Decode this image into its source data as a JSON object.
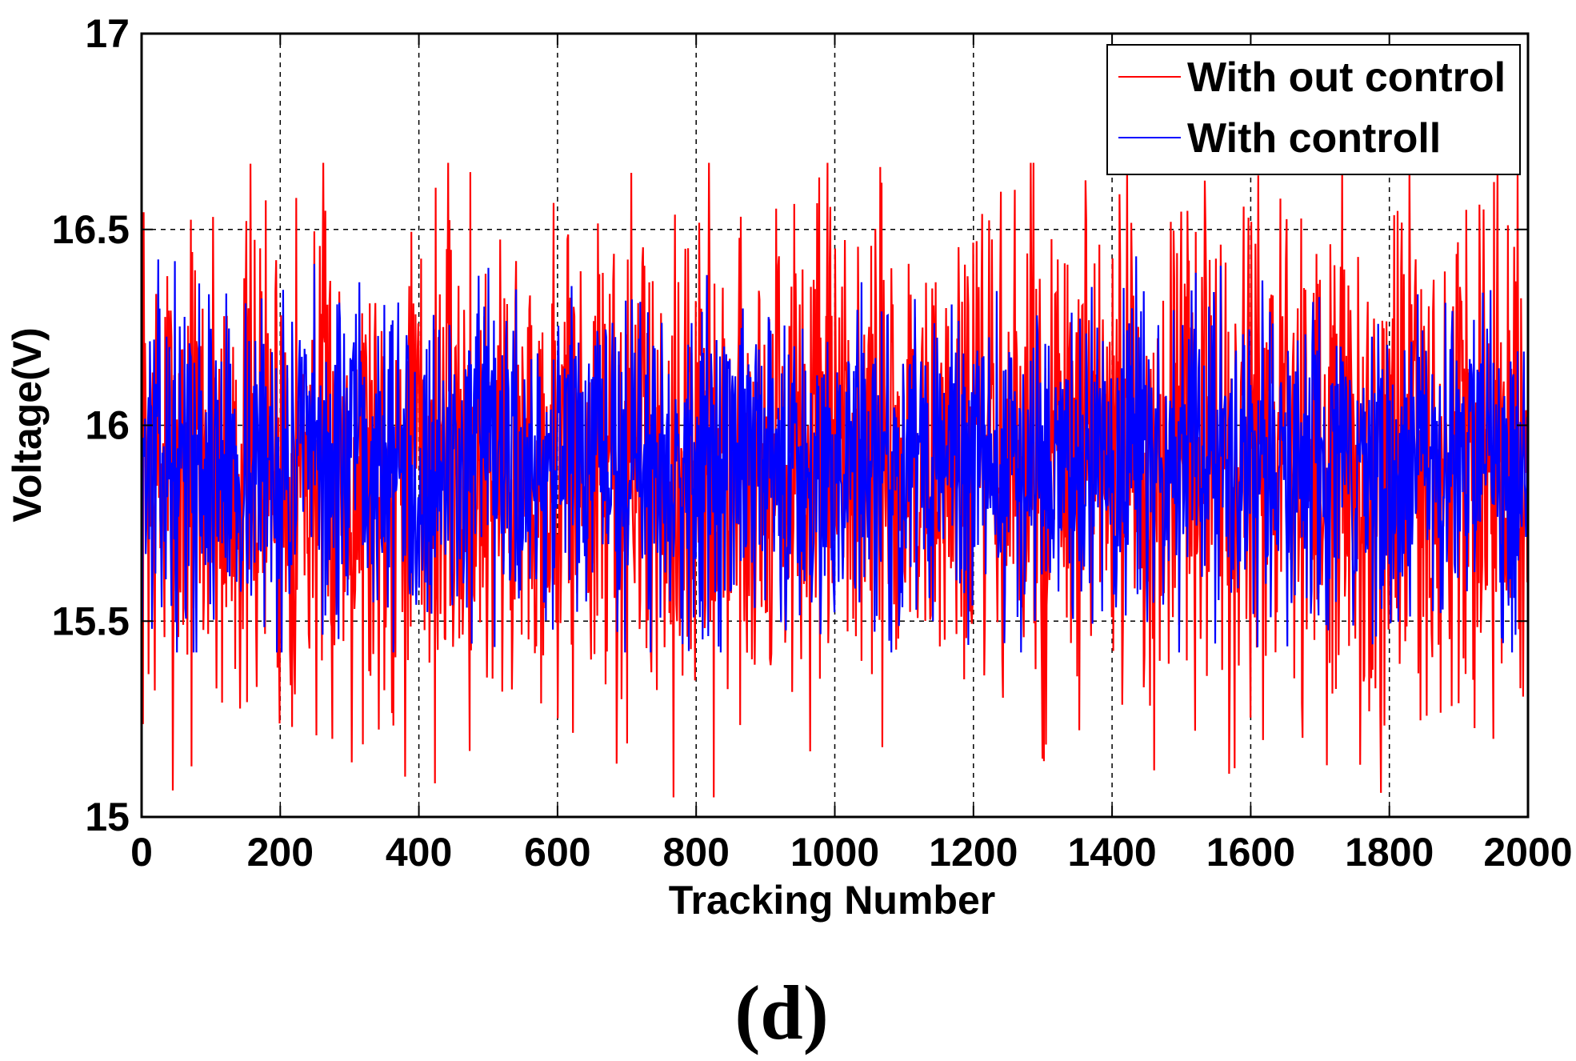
{
  "chart_data": {
    "type": "line",
    "title": "",
    "xlabel": "Tracking Number",
    "ylabel": "Voltage(V)",
    "xlim": [
      0,
      2000
    ],
    "ylim": [
      15,
      17
    ],
    "xticks": [
      0,
      200,
      400,
      600,
      800,
      1000,
      1200,
      1400,
      1600,
      1800,
      2000
    ],
    "xtick_labels": [
      "0",
      "200",
      "400",
      "600",
      "800",
      "1000",
      "1200",
      "1400",
      "1600",
      "1800",
      "2000"
    ],
    "yticks": [
      15,
      15.5,
      16,
      16.5,
      17
    ],
    "ytick_labels": [
      "15",
      "15.5",
      "16",
      "16.5",
      "17"
    ],
    "grid": true,
    "legend_position": "top-right",
    "series": [
      {
        "name": "With out control",
        "color": "#ff0000",
        "n_points": 2000,
        "mean": 15.9,
        "min": 15.05,
        "max": 16.67,
        "seed": 7
      },
      {
        "name": "With controll",
        "color": "#0000ff",
        "n_points": 2000,
        "mean": 15.9,
        "min": 15.42,
        "max": 16.44,
        "seed": 13
      }
    ],
    "panel_label": "(d)"
  }
}
